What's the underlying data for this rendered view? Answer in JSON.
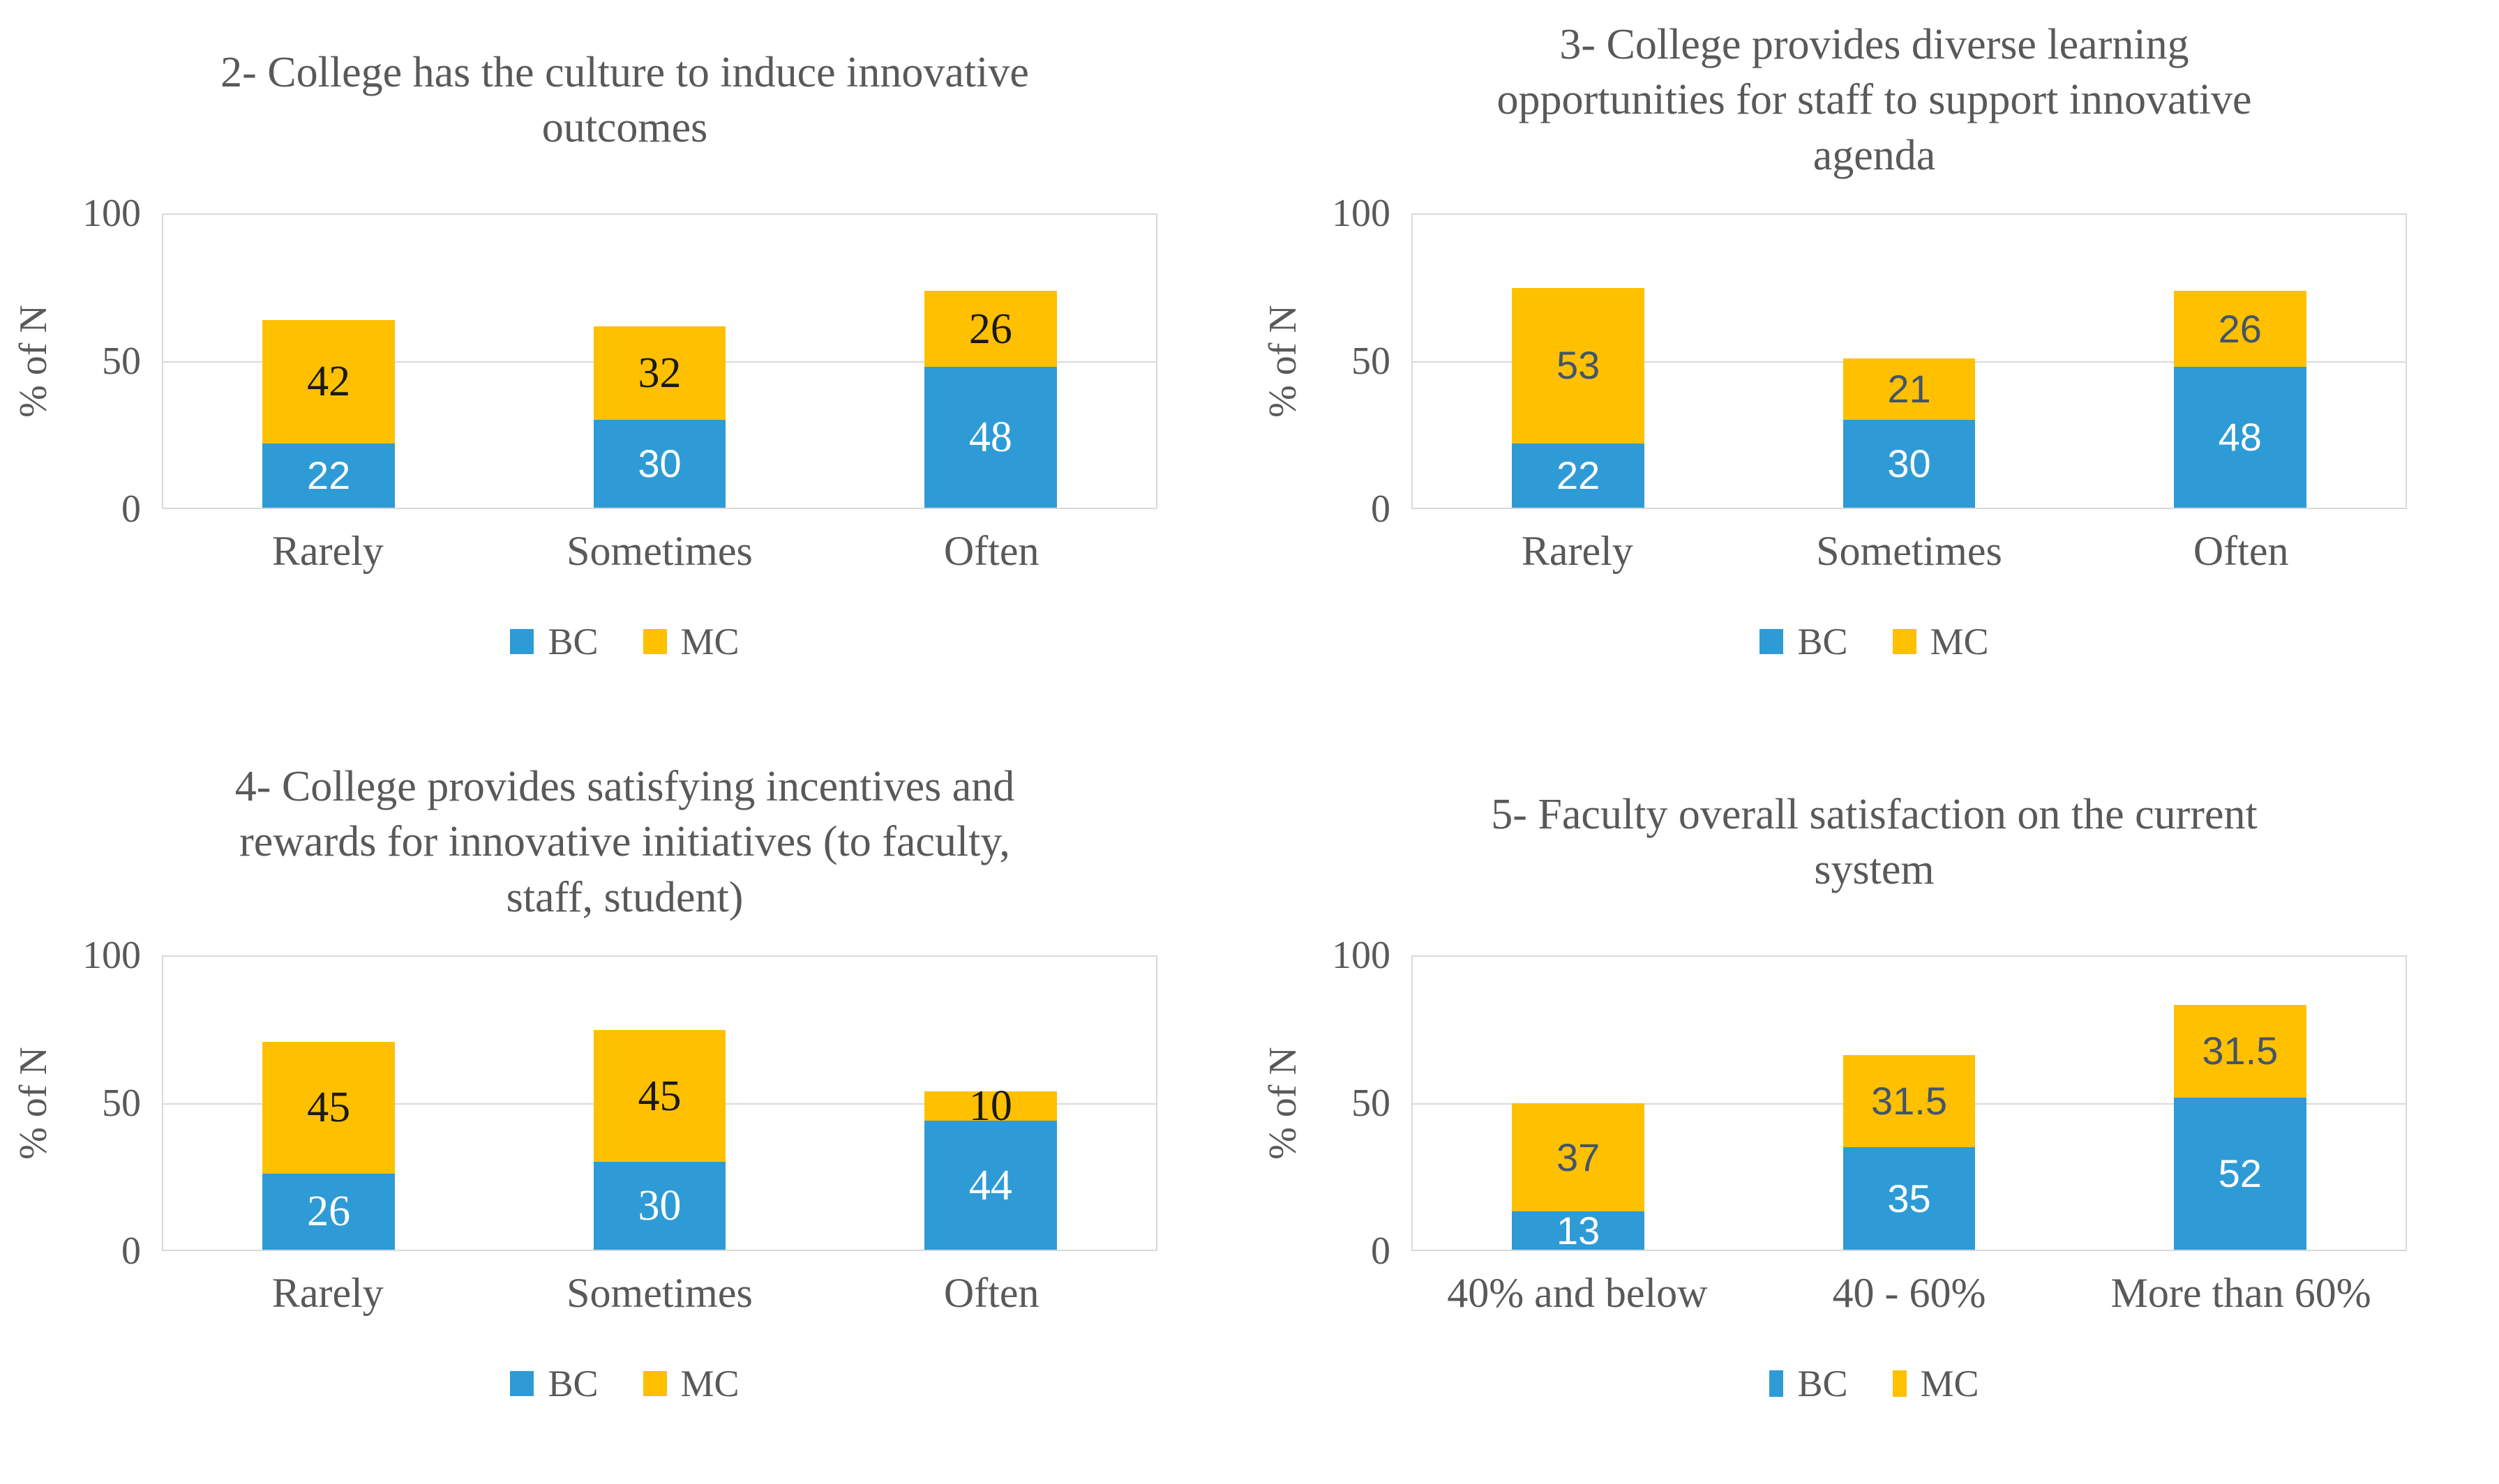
{
  "colors": {
    "bc_blue": "#2E9BD6",
    "mc_yellow": "#FFC000",
    "grid_line": "#D9D9D9",
    "axis_text": "#595959",
    "mc_label_black": "#1A1A1A",
    "mc_label_navy": "#44546A",
    "bc_label_white": "#FFFFFF"
  },
  "chart_data": [
    {
      "type": "bar",
      "stacked": true,
      "title": "2- College has the culture to induce innovative\noutcomes",
      "ylabel": "% of N",
      "ylim": [
        0,
        100
      ],
      "yticks": [
        "100",
        "50",
        "0"
      ],
      "gridline_at": 50,
      "legend_position": "bottom",
      "categories": [
        "Rarely",
        "Sometimes",
        "Often"
      ],
      "series": [
        {
          "name": "BC",
          "color": "#2E9BD6",
          "label_color": "#FFFFFF",
          "values": [
            22,
            30,
            48
          ]
        },
        {
          "name": "MC",
          "color": "#FFC000",
          "label_color": "#1A1A1A",
          "values": [
            42,
            32,
            26
          ]
        }
      ]
    },
    {
      "type": "bar",
      "stacked": true,
      "title": "3- College provides diverse learning\nopportunities for staff to support innovative\nagenda",
      "ylabel": "% of N",
      "ylim": [
        0,
        100
      ],
      "yticks": [
        "100",
        "50",
        "0"
      ],
      "gridline_at": 50,
      "legend_position": "bottom",
      "categories": [
        "Rarely",
        "Sometimes",
        "Often"
      ],
      "series": [
        {
          "name": "BC",
          "color": "#2E9BD6",
          "label_color": "#FFFFFF",
          "values": [
            22,
            30,
            48
          ]
        },
        {
          "name": "MC",
          "color": "#FFC000",
          "label_color": "#44546A",
          "values": [
            53,
            21,
            26
          ]
        }
      ]
    },
    {
      "type": "bar",
      "stacked": true,
      "title": "4- College provides satisfying incentives and\nrewards for innovative initiatives (to faculty,\nstaff, student)",
      "ylabel": "% of N",
      "ylim": [
        0,
        100
      ],
      "yticks": [
        "100",
        "50",
        "0"
      ],
      "gridline_at": 50,
      "legend_position": "bottom",
      "categories": [
        "Rarely",
        "Sometimes",
        "Often"
      ],
      "series": [
        {
          "name": "BC",
          "color": "#2E9BD6",
          "label_color": "#FFFFFF",
          "values": [
            26,
            30,
            44
          ]
        },
        {
          "name": "MC",
          "color": "#FFC000",
          "label_color": "#1A1A1A",
          "values": [
            45,
            45,
            10
          ]
        }
      ]
    },
    {
      "type": "bar",
      "stacked": true,
      "title": "5- Faculty overall satisfaction on the current\nsystem",
      "ylabel": "% of N",
      "ylim": [
        0,
        100
      ],
      "yticks": [
        "100",
        "50",
        "0"
      ],
      "gridline_at": 50,
      "legend_position": "bottom",
      "categories": [
        "40% and below",
        "40 - 60%",
        "More than 60%"
      ],
      "series": [
        {
          "name": "BC",
          "color": "#2E9BD6",
          "label_color": "#FFFFFF",
          "values": [
            13,
            35,
            52
          ]
        },
        {
          "name": "MC",
          "color": "#FFC000",
          "label_color": "#44546A",
          "values": [
            37,
            31.5,
            31.5
          ]
        }
      ]
    }
  ]
}
